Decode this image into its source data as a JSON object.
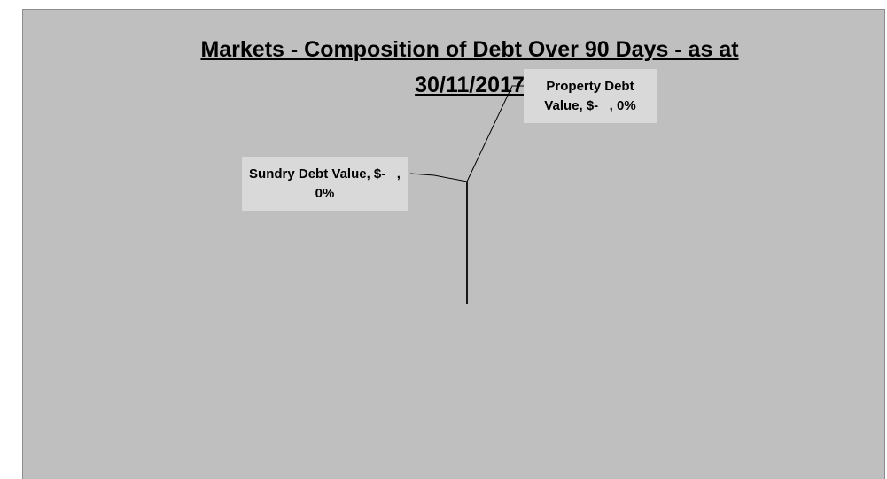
{
  "chart_data": {
    "type": "pie",
    "title": "Markets - Composition of Debt Over 90 Days - as at 30/11/2017",
    "categories": [
      "Property Debt Value",
      "Sundry Debt Value"
    ],
    "values": [
      0,
      0
    ],
    "value_labels": [
      ", $-   , 0%",
      ", $-   , 0%"
    ],
    "colors": [
      "#000000",
      "#000000"
    ]
  }
}
